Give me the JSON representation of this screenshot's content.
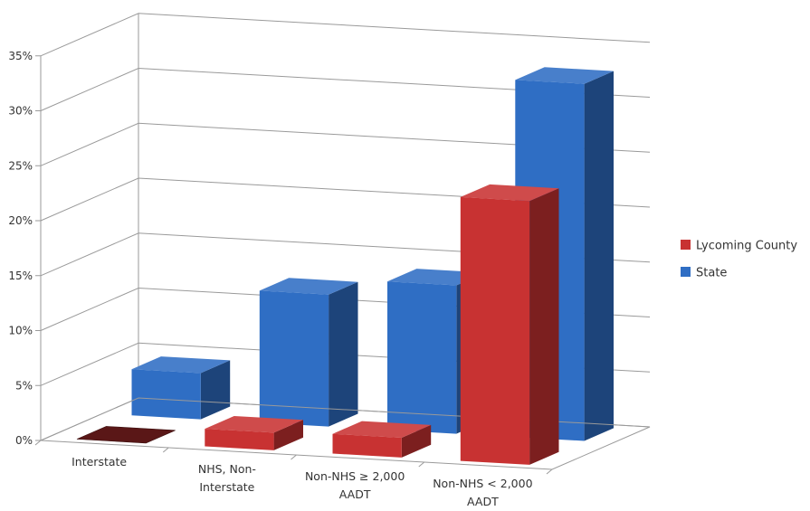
{
  "chart_data": {
    "type": "bar",
    "categories": [
      "Interstate",
      "NHS, Non-Interstate",
      "Non-NHS ≥ 2,000 AADT",
      "Non-NHS < 2,000 AADT"
    ],
    "category_lines": [
      [
        "Interstate"
      ],
      [
        "NHS, Non-",
        "Interstate"
      ],
      [
        "Non-NHS ≥ 2,000",
        "AADT"
      ],
      [
        "Non-NHS < 2,000",
        "AADT"
      ]
    ],
    "series": [
      {
        "name": "Lycoming County",
        "values": [
          0.0,
          1.6,
          1.8,
          24.0
        ],
        "color": "#c83232"
      },
      {
        "name": "State",
        "values": [
          4.2,
          12.0,
          13.5,
          32.5
        ],
        "color": "#2f6ec4"
      }
    ],
    "yticks": [
      "0%",
      "5%",
      "10%",
      "15%",
      "20%",
      "25%",
      "30%",
      "35%"
    ],
    "ylim": [
      0,
      35
    ],
    "style": "3d-clustered-column",
    "grid": true,
    "legend_position": "right"
  }
}
